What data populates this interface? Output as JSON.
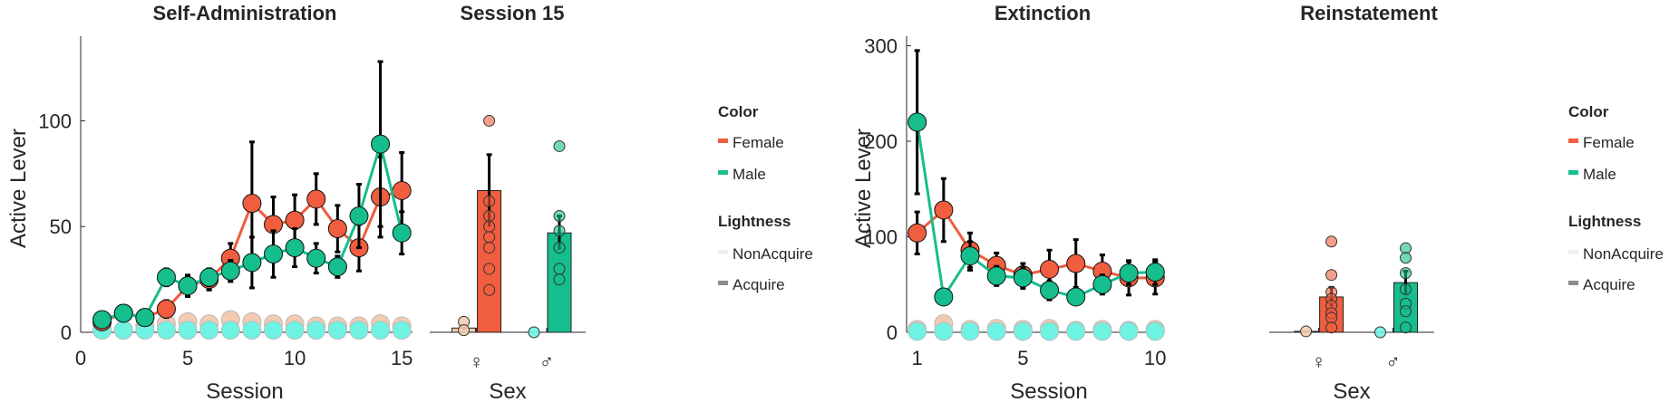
{
  "colors": {
    "female": "#F05D3F",
    "male": "#16BE8D",
    "female_nonacquire": "#F3CBB0",
    "male_nonacquire": "#6EF3E3",
    "axis": "#262626",
    "errorbar": "#000000"
  },
  "legends": [
    {
      "color_title": "Color",
      "color_items": [
        {
          "label": "Female",
          "color": "#F05D3F"
        },
        {
          "label": "Male",
          "color": "#16BE8D"
        }
      ],
      "lightness_title": "Lightness",
      "lightness_items": [
        {
          "label": "NonAcquire",
          "color": "#EFEFEF"
        },
        {
          "label": "Acquire",
          "color": "#8C8C8C"
        }
      ]
    },
    {
      "color_title": "Color",
      "color_items": [
        {
          "label": "Female",
          "color": "#F05D3F"
        },
        {
          "label": "Male",
          "color": "#16BE8D"
        }
      ],
      "lightness_title": "Lightness",
      "lightness_items": [
        {
          "label": "NonAcquire",
          "color": "#EFEFEF"
        },
        {
          "label": "Acquire",
          "color": "#8C8C8C"
        }
      ]
    }
  ],
  "chart_data": [
    {
      "type": "line",
      "title": "Self-Administration",
      "xlabel": "Session",
      "ylabel": "Active Lever",
      "xlim": [
        0,
        15.5
      ],
      "ylim": [
        0,
        140
      ],
      "xticks": [
        0,
        5,
        10,
        15
      ],
      "yticks": [
        0,
        50,
        100
      ],
      "grid": false,
      "series": [
        {
          "name": "Female",
          "group": "Acquire",
          "color": "#F05D3F",
          "x": [
            1,
            2,
            3,
            4,
            5,
            6,
            7,
            8,
            9,
            10,
            11,
            12,
            13,
            14,
            15
          ],
          "y": [
            5,
            9,
            7,
            11,
            22,
            25,
            35,
            61,
            51,
            53,
            63,
            49,
            40,
            64,
            67
          ],
          "err": [
            3,
            3,
            3,
            4,
            5,
            5,
            7,
            29,
            13,
            12,
            12,
            11,
            11,
            19,
            18
          ]
        },
        {
          "name": "Male",
          "group": "Acquire",
          "color": "#16BE8D",
          "x": [
            1,
            2,
            3,
            4,
            5,
            6,
            7,
            8,
            9,
            10,
            11,
            12,
            13,
            14,
            15
          ],
          "y": [
            6,
            9,
            7,
            26,
            22,
            26,
            29,
            33,
            37,
            40,
            35,
            31,
            55,
            89,
            47
          ],
          "err": [
            2,
            3,
            3,
            4,
            5,
            4,
            5,
            12,
            11,
            9,
            7,
            5,
            15,
            39,
            10
          ]
        },
        {
          "name": "Female",
          "group": "NonAcquire",
          "color": "#F3CBB0",
          "x": [
            1,
            2,
            3,
            4,
            5,
            6,
            7,
            8,
            9,
            10,
            11,
            12,
            13,
            14,
            15
          ],
          "y": [
            2,
            1,
            3,
            4,
            5,
            4,
            6,
            5,
            4,
            4,
            3,
            3,
            3,
            4,
            3
          ]
        },
        {
          "name": "Male",
          "group": "NonAcquire",
          "color": "#6EF3E3",
          "x": [
            1,
            2,
            3,
            4,
            5,
            6,
            7,
            8,
            9,
            10,
            11,
            12,
            13,
            14,
            15
          ],
          "y": [
            1,
            1,
            1,
            1,
            1,
            1,
            1,
            1,
            1,
            1,
            1,
            1,
            1,
            1,
            1
          ]
        }
      ]
    },
    {
      "type": "bar",
      "title": "Session 15",
      "xlabel": "Sex",
      "categories": [
        "♀",
        "♂"
      ],
      "ylim": [
        0,
        140
      ],
      "bars": [
        {
          "name": "Female",
          "group": "Acquire",
          "value": 67,
          "err": 17,
          "color": "#F05D3F",
          "points": [
            100,
            62,
            55,
            50,
            45,
            40,
            30,
            20
          ]
        },
        {
          "name": "Male",
          "group": "Acquire",
          "value": 47,
          "err": 8,
          "color": "#16BE8D",
          "points": [
            88,
            55,
            48,
            40,
            30,
            25
          ]
        },
        {
          "name": "Female",
          "group": "NonAcquire",
          "value": 2,
          "err": 1,
          "color": "#F3CBB0",
          "points": [
            5,
            1
          ]
        },
        {
          "name": "Male",
          "group": "NonAcquire",
          "value": 0,
          "err": 0,
          "color": "#6EF3E3",
          "points": [
            0
          ]
        }
      ]
    },
    {
      "type": "line",
      "title": "Extinction",
      "xlabel": "Session",
      "ylabel": "Active Lever",
      "xlim": [
        0.6,
        10.3
      ],
      "ylim": [
        0,
        310
      ],
      "xticks": [
        1,
        5,
        10
      ],
      "yticks": [
        0,
        100,
        200,
        300
      ],
      "grid": false,
      "series": [
        {
          "name": "Female",
          "group": "Acquire",
          "color": "#F05D3F",
          "x": [
            1,
            2,
            3,
            4,
            5,
            6,
            7,
            8,
            9,
            10
          ],
          "y": [
            104,
            128,
            86,
            70,
            60,
            66,
            72,
            64,
            57,
            57
          ],
          "err": [
            22,
            33,
            18,
            13,
            12,
            20,
            25,
            17,
            18,
            17
          ]
        },
        {
          "name": "Male",
          "group": "Acquire",
          "color": "#16BE8D",
          "x": [
            1,
            2,
            3,
            4,
            5,
            6,
            7,
            8,
            9,
            10
          ],
          "y": [
            220,
            37,
            80,
            59,
            57,
            44,
            37,
            50,
            62,
            63
          ],
          "err": [
            75,
            8,
            15,
            10,
            11,
            10,
            8,
            10,
            12,
            13
          ]
        },
        {
          "name": "Female",
          "group": "NonAcquire",
          "color": "#F3CBB0",
          "x": [
            1,
            2,
            3,
            4,
            5,
            6,
            7,
            8,
            9,
            10
          ],
          "y": [
            3,
            9,
            3,
            4,
            3,
            4,
            2,
            3,
            2,
            3
          ]
        },
        {
          "name": "Male",
          "group": "NonAcquire",
          "color": "#6EF3E3",
          "x": [
            1,
            2,
            3,
            4,
            5,
            6,
            7,
            8,
            9,
            10
          ],
          "y": [
            1,
            1,
            1,
            1,
            1,
            1,
            1,
            1,
            1,
            1
          ]
        }
      ]
    },
    {
      "type": "bar",
      "title": "Reinstatement",
      "xlabel": "Sex",
      "categories": [
        "♀",
        "♂"
      ],
      "ylim": [
        0,
        310
      ],
      "bars": [
        {
          "name": "Female",
          "group": "Acquire",
          "value": 37,
          "err": 10,
          "color": "#F05D3F",
          "points": [
            95,
            60,
            42,
            35,
            28,
            20,
            15,
            5
          ]
        },
        {
          "name": "Male",
          "group": "Acquire",
          "value": 52,
          "err": 12,
          "color": "#16BE8D",
          "points": [
            88,
            78,
            62,
            45,
            30,
            22,
            5
          ]
        },
        {
          "name": "Female",
          "group": "NonAcquire",
          "value": 1,
          "err": 0,
          "color": "#F3CBB0",
          "points": [
            1
          ]
        },
        {
          "name": "Male",
          "group": "NonAcquire",
          "value": 0,
          "err": 0,
          "color": "#6EF3E3",
          "points": [
            0
          ]
        }
      ]
    }
  ]
}
